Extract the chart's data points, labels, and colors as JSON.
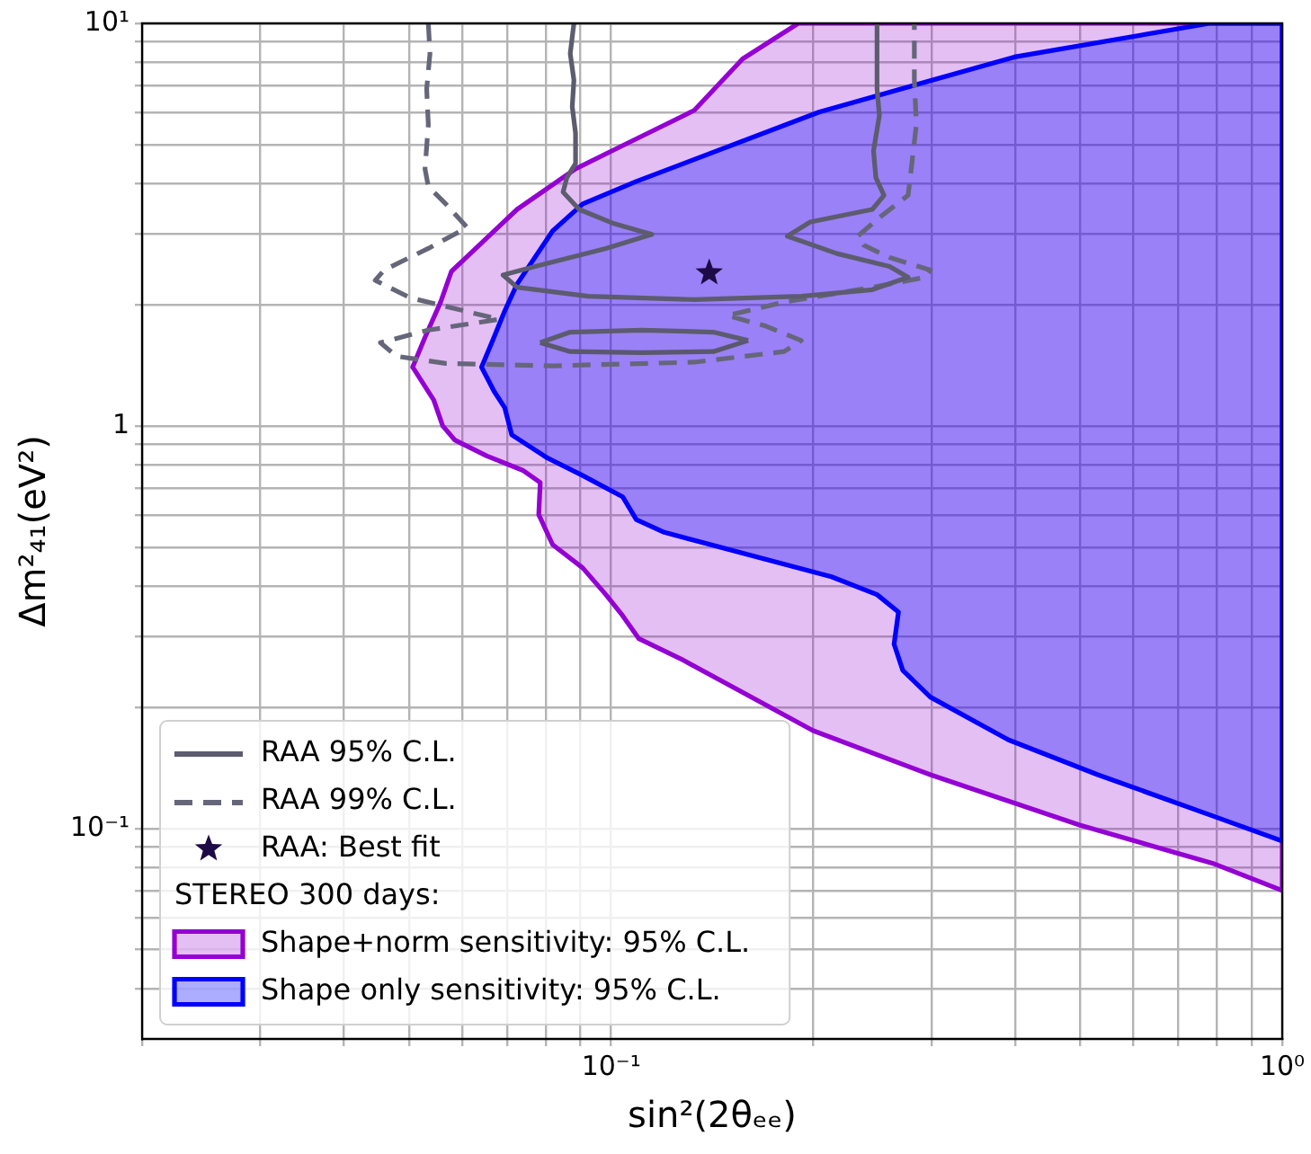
{
  "chart_data": {
    "type": "line",
    "xlabel": "sin²(2θₑₑ)",
    "ylabel": "Δm²₄₁(eV²)",
    "log": "xy",
    "grid": true,
    "legend": "bottom left",
    "legend_title": "STEREO 300 days:",
    "xlim": [
      0.02,
      1
    ],
    "ylim": [
      0.03,
      10
    ],
    "xticks": [
      {
        "value": 0.02,
        "label": null
      },
      {
        "value": 0.03,
        "label": null
      },
      {
        "value": 0.04,
        "label": null
      },
      {
        "value": 0.05,
        "label": null
      },
      {
        "value": 0.06,
        "label": null
      },
      {
        "value": 0.07,
        "label": null
      },
      {
        "value": 0.08,
        "label": null
      },
      {
        "value": 0.09,
        "label": null
      },
      {
        "value": 0.1,
        "label": "10⁻¹"
      },
      {
        "value": 0.2,
        "label": null
      },
      {
        "value": 0.3,
        "label": null
      },
      {
        "value": 0.4,
        "label": null
      },
      {
        "value": 0.5,
        "label": null
      },
      {
        "value": 0.6,
        "label": null
      },
      {
        "value": 0.7,
        "label": null
      },
      {
        "value": 0.8,
        "label": null
      },
      {
        "value": 0.9,
        "label": null
      },
      {
        "value": 1,
        "label": "10⁰"
      }
    ],
    "yticks": [
      {
        "value": 0.04,
        "label": null
      },
      {
        "value": 0.05,
        "label": null
      },
      {
        "value": 0.06,
        "label": null
      },
      {
        "value": 0.07,
        "label": null
      },
      {
        "value": 0.08,
        "label": null
      },
      {
        "value": 0.09,
        "label": null
      },
      {
        "value": 0.1,
        "label": "10⁻¹"
      },
      {
        "value": 0.2,
        "label": null
      },
      {
        "value": 0.3,
        "label": null
      },
      {
        "value": 0.4,
        "label": null
      },
      {
        "value": 0.5,
        "label": null
      },
      {
        "value": 0.6,
        "label": null
      },
      {
        "value": 0.7,
        "label": null
      },
      {
        "value": 0.8,
        "label": null
      },
      {
        "value": 0.9,
        "label": null
      },
      {
        "value": 1,
        "label": "1"
      },
      {
        "value": 2,
        "label": null
      },
      {
        "value": 3,
        "label": null
      },
      {
        "value": 4,
        "label": null
      },
      {
        "value": 5,
        "label": null
      },
      {
        "value": 6,
        "label": null
      },
      {
        "value": 7,
        "label": null
      },
      {
        "value": 8,
        "label": null
      },
      {
        "value": 9,
        "label": null
      },
      {
        "value": 10,
        "label": "10¹"
      }
    ],
    "series": [
      {
        "name": "RAA 95% C.L.",
        "type": "line",
        "line_style": "solid",
        "marker": "none",
        "color": "#5c5c6e",
        "x": [
          0.088,
          0.0869,
          0.088,
          0.0875,
          0.0885,
          0.0885,
          0.0859,
          0.0848,
          0.0896,
          0.101,
          0.115,
          0.0982,
          0.077,
          0.069,
          0.0724,
          0.0924,
          0.133,
          0.192,
          0.245,
          0.277,
          0.26,
          0.217,
          0.183,
          0.198,
          0.245,
          0.255,
          0.248,
          0.246,
          0.251,
          0.249,
          0.249
        ],
        "values": [
          10,
          8.41,
          7.23,
          6.21,
          5.33,
          4.49,
          4.14,
          3.81,
          3.45,
          3.18,
          2.99,
          2.76,
          2.49,
          2.37,
          2.21,
          2.1,
          2.06,
          2.1,
          2.18,
          2.34,
          2.49,
          2.68,
          2.96,
          3.21,
          3.45,
          3.74,
          4.14,
          4.82,
          5.9,
          6.87,
          10
        ]
      },
      {
        "line_style": "solid",
        "marker": "none",
        "color": "#5c5c6e",
        "x": [
          0.0784,
          0.0869,
          0.111,
          0.142,
          0.16
        ],
        "values": [
          1.61,
          1.71,
          1.73,
          1.71,
          1.63
        ]
      },
      {
        "line_style": "solid",
        "marker": "none",
        "color": "#5a586c",
        "x": [
          0.0784,
          0.0869,
          0.111,
          0.142,
          0.16
        ],
        "values": [
          1.61,
          1.53,
          1.52,
          1.53,
          1.63
        ]
      },
      {
        "name": "RAA 99% C.L.",
        "type": "line",
        "line_style": "dashed",
        "marker": "none",
        "color": "#66667a",
        "x": [
          0.0534,
          0.0537,
          0.0531,
          0.0534,
          0.0528,
          0.0534,
          0.0567,
          0.061,
          0.0534,
          0.0459,
          0.0445,
          0.0502,
          0.0681,
          0.0534,
          0.0453,
          0.0479,
          0.0567,
          0.0818,
          0.133,
          0.181,
          0.192,
          0.17,
          0.149,
          0.181,
          0.245,
          0.294,
          0.299,
          0.26,
          0.238,
          0.233,
          0.252,
          0.277,
          0.28,
          0.285,
          0.283,
          0.283
        ],
        "values": [
          10,
          8.41,
          6.87,
          5.61,
          4.35,
          3.93,
          3.56,
          3.11,
          2.76,
          2.44,
          2.3,
          2.08,
          1.84,
          1.73,
          1.61,
          1.49,
          1.43,
          1.41,
          1.44,
          1.53,
          1.63,
          1.77,
          1.88,
          2.03,
          2.21,
          2.34,
          2.44,
          2.62,
          2.81,
          2.96,
          3.31,
          3.74,
          4.35,
          5.61,
          7.23,
          10
        ]
      },
      {
        "name": "RAA: Best fit",
        "type": "scatter",
        "marker": "star",
        "color": "#1e0a46",
        "x": [
          0.14
        ],
        "values": [
          2.4
        ]
      },
      {
        "name": "Shape only sensitivity: 95% C.L.",
        "type": "area",
        "color": "#0000ff",
        "x": [
          0.779,
          0.399,
          0.204,
          0.109,
          0.0907,
          0.0818,
          0.0724,
          0.0694,
          0.0669,
          0.0641,
          0.0669,
          0.0694,
          0.0711,
          0.0803,
          0.0907,
          0.104,
          0.109,
          0.12,
          0.213,
          0.249,
          0.268,
          0.264,
          0.272,
          0.299,
          0.391,
          0.531,
          0.793,
          1,
          1,
          0.779
        ],
        "values": [
          10,
          8.25,
          6.02,
          4.05,
          3.56,
          3.05,
          2.25,
          1.93,
          1.66,
          1.4,
          1.22,
          1.11,
          0.95,
          0.833,
          0.753,
          0.667,
          0.585,
          0.544,
          0.422,
          0.381,
          0.345,
          0.287,
          0.247,
          0.212,
          0.166,
          0.136,
          0.107,
          0.0931,
          10,
          10
        ]
      },
      {
        "name": "Shape+norm sensitivity: 95% C.L.",
        "type": "area",
        "color": "#9400d3",
        "x": [
          0.19,
          0.157,
          0.133,
          0.104,
          0.0885,
          0.0724,
          0.0578,
          0.0557,
          0.0528,
          0.0506,
          0.0544,
          0.0561,
          0.0585,
          0.0653,
          0.0738,
          0.0784,
          0.078,
          0.0818,
          0.0907,
          0.0982,
          0.104,
          0.11,
          0.128,
          0.2,
          0.299,
          0.499,
          0.793,
          1,
          1,
          0.19
        ],
        "values": [
          10,
          8.16,
          6.08,
          4.97,
          4.35,
          3.45,
          2.42,
          2.03,
          1.66,
          1.4,
          1.16,
          1,
          0.922,
          0.842,
          0.776,
          0.723,
          0.602,
          0.507,
          0.444,
          0.381,
          0.338,
          0.296,
          0.262,
          0.175,
          0.136,
          0.102,
          0.0816,
          0.0701,
          10,
          10
        ]
      }
    ]
  }
}
